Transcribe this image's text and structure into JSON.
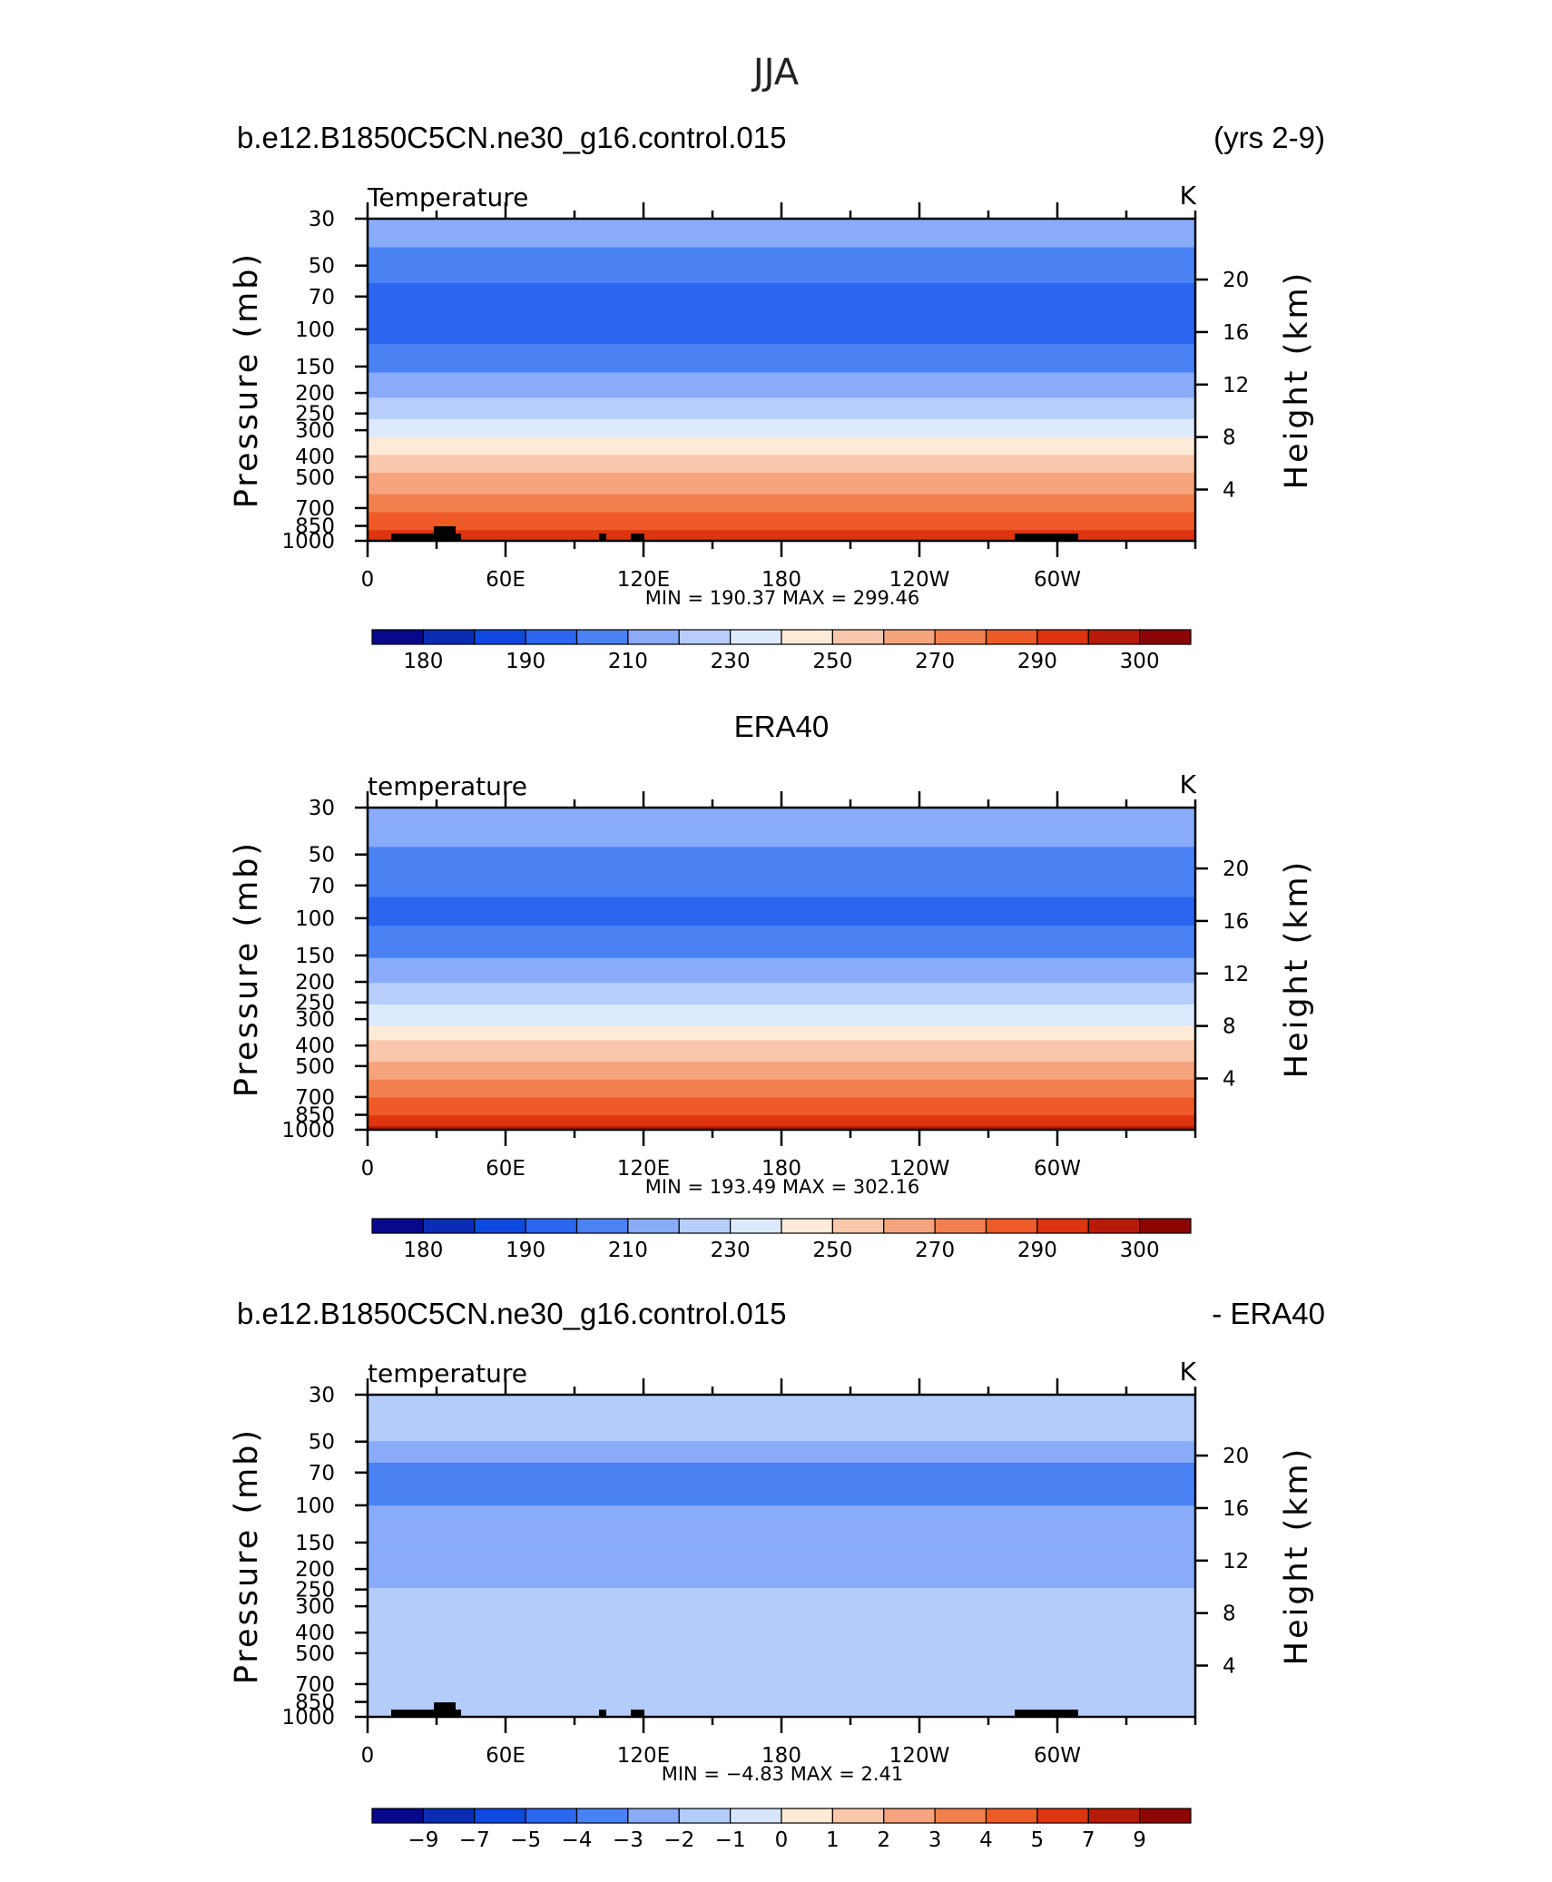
{
  "figure": {
    "main_title": "JJA",
    "run_name": "b.e12.B1850C5CN.ne30_g16.control.015",
    "years": "(yrs 2-9)",
    "obs_title": "ERA40",
    "diff_suffix": "- ERA40"
  },
  "colors": {
    "temp_levels": [
      "#08088c",
      "#0b2cb4",
      "#1048e2",
      "#2a66f0",
      "#4a82f4",
      "#89abf8",
      "#b6cef9",
      "#dde9fd",
      "#fdebd8",
      "#f9c7ab",
      "#f5a47e",
      "#f2804f",
      "#ee5a28",
      "#de3410",
      "#b81a0a",
      "#8c0606"
    ],
    "diff_levels": [
      "#08088c",
      "#0b2cb4",
      "#1048e2",
      "#2a66f0",
      "#4a82f4",
      "#89abf8",
      "#b3ccfa",
      "#d7e6fd",
      "#fdebd8",
      "#f9c7ab",
      "#f5a47e",
      "#f2804f",
      "#ee5a28",
      "#de3410",
      "#b81a0a",
      "#8c0606"
    ],
    "topography": "#000000"
  },
  "chart_data": [
    {
      "type": "heatmap",
      "title": "b.e12.B1850C5CN.ne30_g16.control.015",
      "subtitle": "(yrs 2-9)",
      "variable_label": "Temperature",
      "units": "K",
      "ylabel": "Pressure (mb)",
      "ylabel_right": "Height (km)",
      "x_ticks": [
        "0",
        "60E",
        "120E",
        "180",
        "120W",
        "60W"
      ],
      "y_ticks": [
        "30",
        "50",
        "70",
        "100",
        "150",
        "200",
        "250",
        "300",
        "400",
        "500",
        "700",
        "850",
        "1000"
      ],
      "y2_ticks": [
        "20",
        "16",
        "12",
        "8",
        "4"
      ],
      "stats": {
        "min": "190.37",
        "max": "299.46"
      },
      "stats_text": "MIN = 190.37 MAX = 299.46",
      "colorbar_labels": [
        "180",
        "190",
        "210",
        "230",
        "250",
        "270",
        "290",
        "300"
      ],
      "contour_levels": [
        175,
        180,
        185,
        190,
        200,
        210,
        220,
        230,
        240,
        250,
        260,
        270,
        280,
        290,
        295,
        300,
        305
      ],
      "profile": [
        {
          "p": 30,
          "t": 218
        },
        {
          "p": 50,
          "t": 205
        },
        {
          "p": 70,
          "t": 196
        },
        {
          "p": 100,
          "t": 195
        },
        {
          "p": 150,
          "t": 208
        },
        {
          "p": 200,
          "t": 218
        },
        {
          "p": 250,
          "t": 227
        },
        {
          "p": 300,
          "t": 236
        },
        {
          "p": 400,
          "t": 251
        },
        {
          "p": 500,
          "t": 262
        },
        {
          "p": 700,
          "t": 278
        },
        {
          "p": 850,
          "t": 287
        },
        {
          "p": 1000,
          "t": 296
        }
      ]
    },
    {
      "type": "heatmap",
      "title": "ERA40",
      "variable_label": "temperature",
      "units": "K",
      "ylabel": "Pressure (mb)",
      "ylabel_right": "Height (km)",
      "x_ticks": [
        "0",
        "60E",
        "120E",
        "180",
        "120W",
        "60W"
      ],
      "y_ticks": [
        "30",
        "50",
        "70",
        "100",
        "150",
        "200",
        "250",
        "300",
        "400",
        "500",
        "700",
        "850",
        "1000"
      ],
      "y2_ticks": [
        "20",
        "16",
        "12",
        "8",
        "4"
      ],
      "stats": {
        "min": "193.49",
        "max": "302.16"
      },
      "stats_text": "MIN = 193.49 MAX = 302.16",
      "colorbar_labels": [
        "180",
        "190",
        "210",
        "230",
        "250",
        "270",
        "290",
        "300"
      ],
      "contour_levels": [
        175,
        180,
        185,
        190,
        200,
        210,
        220,
        230,
        240,
        250,
        260,
        270,
        280,
        290,
        295,
        300,
        305
      ],
      "profile": [
        {
          "p": 30,
          "t": 220
        },
        {
          "p": 50,
          "t": 208
        },
        {
          "p": 70,
          "t": 201
        },
        {
          "p": 100,
          "t": 198
        },
        {
          "p": 150,
          "t": 209
        },
        {
          "p": 200,
          "t": 219
        },
        {
          "p": 250,
          "t": 228
        },
        {
          "p": 300,
          "t": 237
        },
        {
          "p": 400,
          "t": 252
        },
        {
          "p": 500,
          "t": 263
        },
        {
          "p": 700,
          "t": 279
        },
        {
          "p": 850,
          "t": 289
        },
        {
          "p": 1000,
          "t": 298
        }
      ]
    },
    {
      "type": "heatmap",
      "title": "b.e12.B1850C5CN.ne30_g16.control.015",
      "subtitle": "- ERA40",
      "variable_label": "temperature",
      "units": "K",
      "ylabel": "Pressure (mb)",
      "ylabel_right": "Height (km)",
      "x_ticks": [
        "0",
        "60E",
        "120E",
        "180",
        "120W",
        "60W"
      ],
      "y_ticks": [
        "30",
        "50",
        "70",
        "100",
        "150",
        "200",
        "250",
        "300",
        "400",
        "500",
        "700",
        "850",
        "1000"
      ],
      "y2_ticks": [
        "20",
        "16",
        "12",
        "8",
        "4"
      ],
      "stats": {
        "min": "−4.83",
        "max": "2.41"
      },
      "stats_text": "MIN = −4.83 MAX = 2.41",
      "colorbar_labels": [
        "−9",
        "−7",
        "−5",
        "−4",
        "−3",
        "−2",
        "−1",
        "0",
        "1",
        "2",
        "3",
        "4",
        "5",
        "7",
        "9"
      ],
      "contour_levels": [
        -11,
        -9,
        -7,
        -5,
        -4,
        -3,
        -2,
        -1,
        0,
        1,
        2,
        3,
        4,
        5,
        7,
        9,
        11
      ],
      "profile": [
        {
          "p": 30,
          "t": -1.5
        },
        {
          "p": 50,
          "t": -2.0
        },
        {
          "p": 70,
          "t": -3.5
        },
        {
          "p": 100,
          "t": -3.0
        },
        {
          "p": 150,
          "t": -3.0
        },
        {
          "p": 200,
          "t": -2.5
        },
        {
          "p": 250,
          "t": -2.0
        },
        {
          "p": 300,
          "t": -1.6
        },
        {
          "p": 400,
          "t": -1.0
        },
        {
          "p": 500,
          "t": -1.2
        },
        {
          "p": 700,
          "t": -1.5
        },
        {
          "p": 850,
          "t": -1.7
        },
        {
          "p": 1000,
          "t": -1.2
        }
      ]
    }
  ]
}
